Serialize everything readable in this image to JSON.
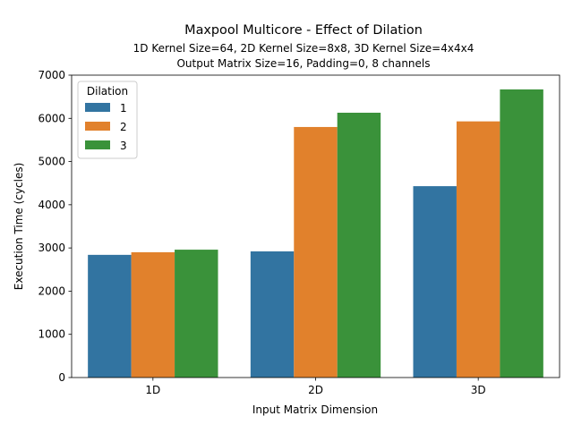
{
  "chart_data": {
    "type": "bar",
    "title": "Maxpool Multicore - Effect of Dilation",
    "subtitle_lines": [
      "1D Kernel Size=64, 2D Kernel Size=8x8, 3D Kernel Size=4x4x4",
      "Output Matrix Size=16, Padding=0, 8 channels"
    ],
    "xlabel": "Input Matrix Dimension",
    "ylabel": "Execution Time (cycles)",
    "categories": [
      "1D",
      "2D",
      "3D"
    ],
    "ylim": [
      0,
      7000
    ],
    "yticks": [
      0,
      1000,
      2000,
      3000,
      4000,
      5000,
      6000,
      7000
    ],
    "grid": false,
    "legend": {
      "title": "Dilation",
      "placement": "top-left"
    },
    "series": [
      {
        "name": "1",
        "color": "#3274a1",
        "values": [
          2840,
          2920,
          4430
        ]
      },
      {
        "name": "2",
        "color": "#e1812c",
        "values": [
          2900,
          5800,
          5930
        ]
      },
      {
        "name": "3",
        "color": "#3a923a",
        "values": [
          2960,
          6130,
          6670
        ]
      }
    ]
  }
}
